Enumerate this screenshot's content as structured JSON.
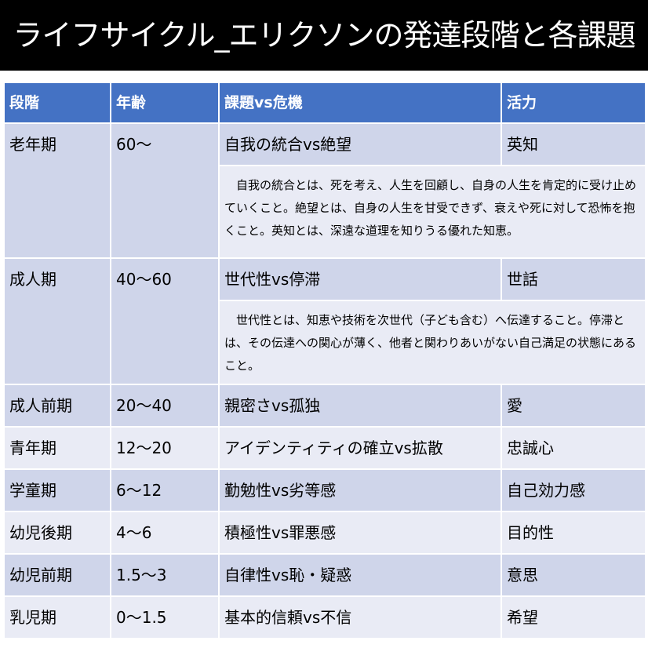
{
  "title": "ライフサイクル_エリクソンの発達段階と各課題",
  "table": {
    "headers": [
      "段階",
      "年齢",
      "課題vs危機",
      "活力"
    ],
    "rows": [
      {
        "stage": "老年期",
        "age": "60～",
        "task": "自我の統合vs絶望",
        "virtue": "英知",
        "description": "　自我の統合とは、死を考え、人生を回顧し、自身の人生を肯定的に受け止めていくこと。絶望とは、自身の人生を甘受できず、衰えや死に対して恐怖を抱くこと。英知とは、深遠な道理を知りうる優れた知恵。"
      },
      {
        "stage": "成人期",
        "age": "40～60",
        "task": "世代性vs停滞",
        "virtue": "世話",
        "description": "　世代性とは、知恵や技術を次世代（子ども含む）へ伝達すること。停滞とは、その伝達への関心が薄く、他者と関わりあいがない自己満足の状態にあること。"
      },
      {
        "stage": "成人前期",
        "age": "20～40",
        "task": "親密さvs孤独",
        "virtue": "愛"
      },
      {
        "stage": "青年期",
        "age": "12～20",
        "task": "アイデンティティの確立vs拡散",
        "virtue": "忠誠心"
      },
      {
        "stage": "学童期",
        "age": "6～12",
        "task": "勤勉性vs劣等感",
        "virtue": "自己効力感"
      },
      {
        "stage": "幼児後期",
        "age": "4～6",
        "task": "積極性vs罪悪感",
        "virtue": "目的性"
      },
      {
        "stage": "幼児前期",
        "age": "1.5～3",
        "task": "自律性vs恥・疑惑",
        "virtue": "意思"
      },
      {
        "stage": "乳児期",
        "age": "0～1.5",
        "task": "基本的信頼vs不信",
        "virtue": "希望"
      }
    ]
  },
  "colors": {
    "header": "#4472c4",
    "row_dark": "#cfd5ea",
    "row_light": "#e9ebf5",
    "title_bg": "#000000"
  }
}
